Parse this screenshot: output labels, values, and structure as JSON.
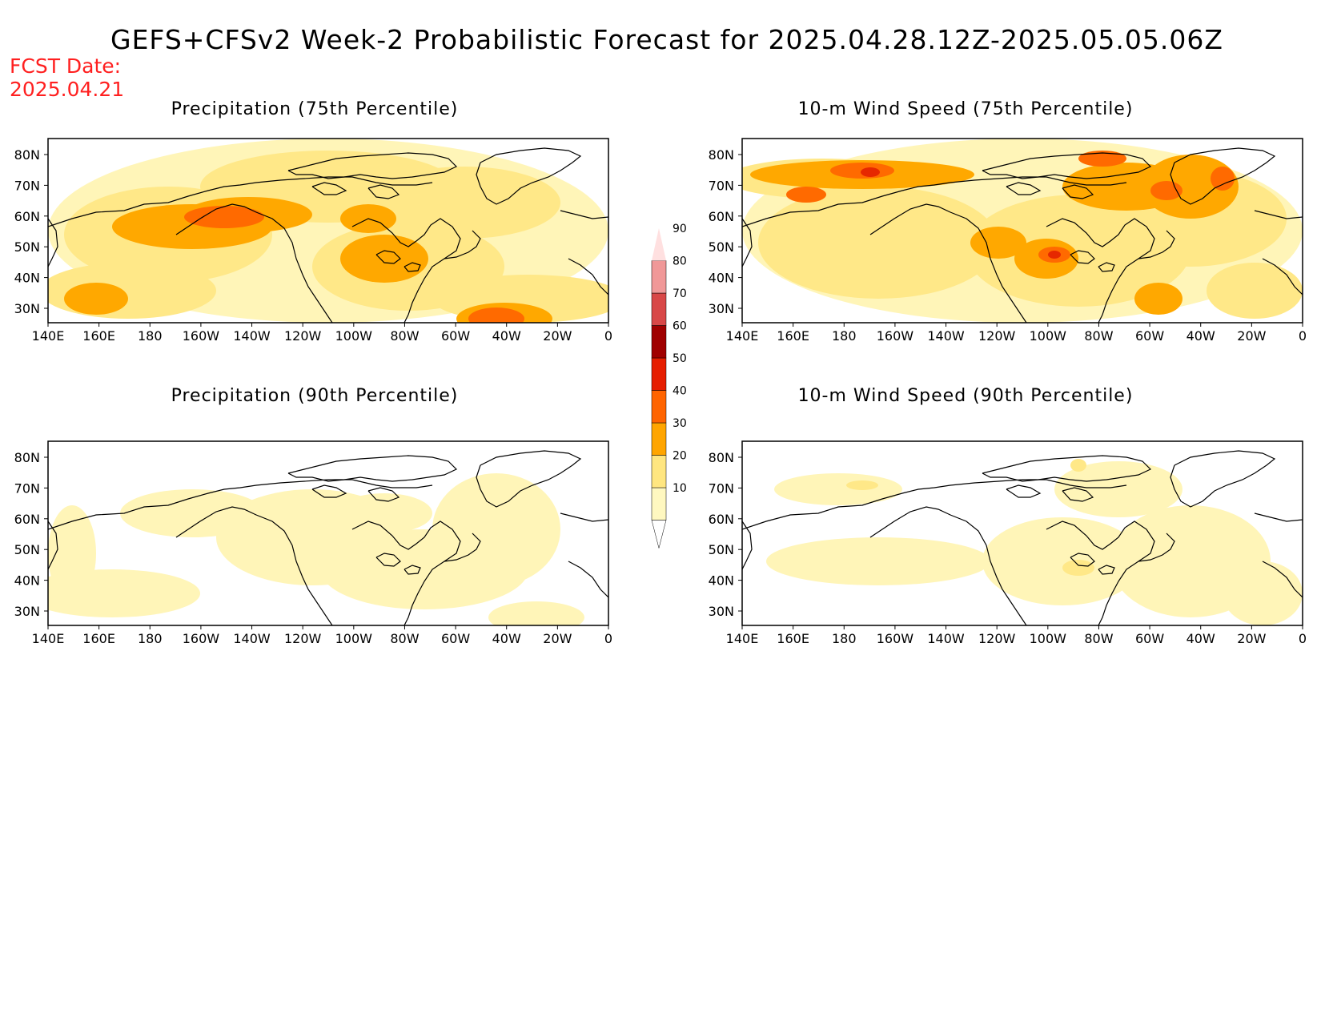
{
  "title": "GEFS+CFSv2 Week-2 Probabilistic Forecast for 2025.04.28.12Z-2025.05.05.06Z",
  "fcst_date_label": "FCST Date:",
  "fcst_date_value": "2025.04.21",
  "panels": [
    {
      "title": "Precipitation (75th Percentile)",
      "intensity": "high-precip"
    },
    {
      "title": "10-m Wind Speed (75th Percentile)",
      "intensity": "high-wind"
    },
    {
      "title": "Precipitation (90th Percentile)",
      "intensity": "low-precip"
    },
    {
      "title": "10-m Wind Speed (90th Percentile)",
      "intensity": "low-wind"
    }
  ],
  "lat_labels": [
    "80N",
    "70N",
    "60N",
    "50N",
    "40N",
    "30N"
  ],
  "lon_labels": [
    "140E",
    "160E",
    "180",
    "160W",
    "140W",
    "120W",
    "100W",
    "80W",
    "60W",
    "40W",
    "20W",
    "0"
  ],
  "colorbar": {
    "levels": [
      "10",
      "20",
      "30",
      "40",
      "50",
      "60",
      "70",
      "80",
      "90"
    ],
    "colors": [
      "#fff8c0",
      "#ffe680",
      "#ffa500",
      "#ff6400",
      "#e61e00",
      "#a00000",
      "#d84848",
      "#f09898",
      "#ffe0e0"
    ]
  },
  "colors": {
    "white": "#ffffff",
    "c10": "#fff5b8",
    "c20": "#ffe888",
    "c30": "#ffa800",
    "c40": "#ff6a00",
    "c50": "#e62800",
    "coast": "#000000",
    "title_red": "#ff2020"
  }
}
